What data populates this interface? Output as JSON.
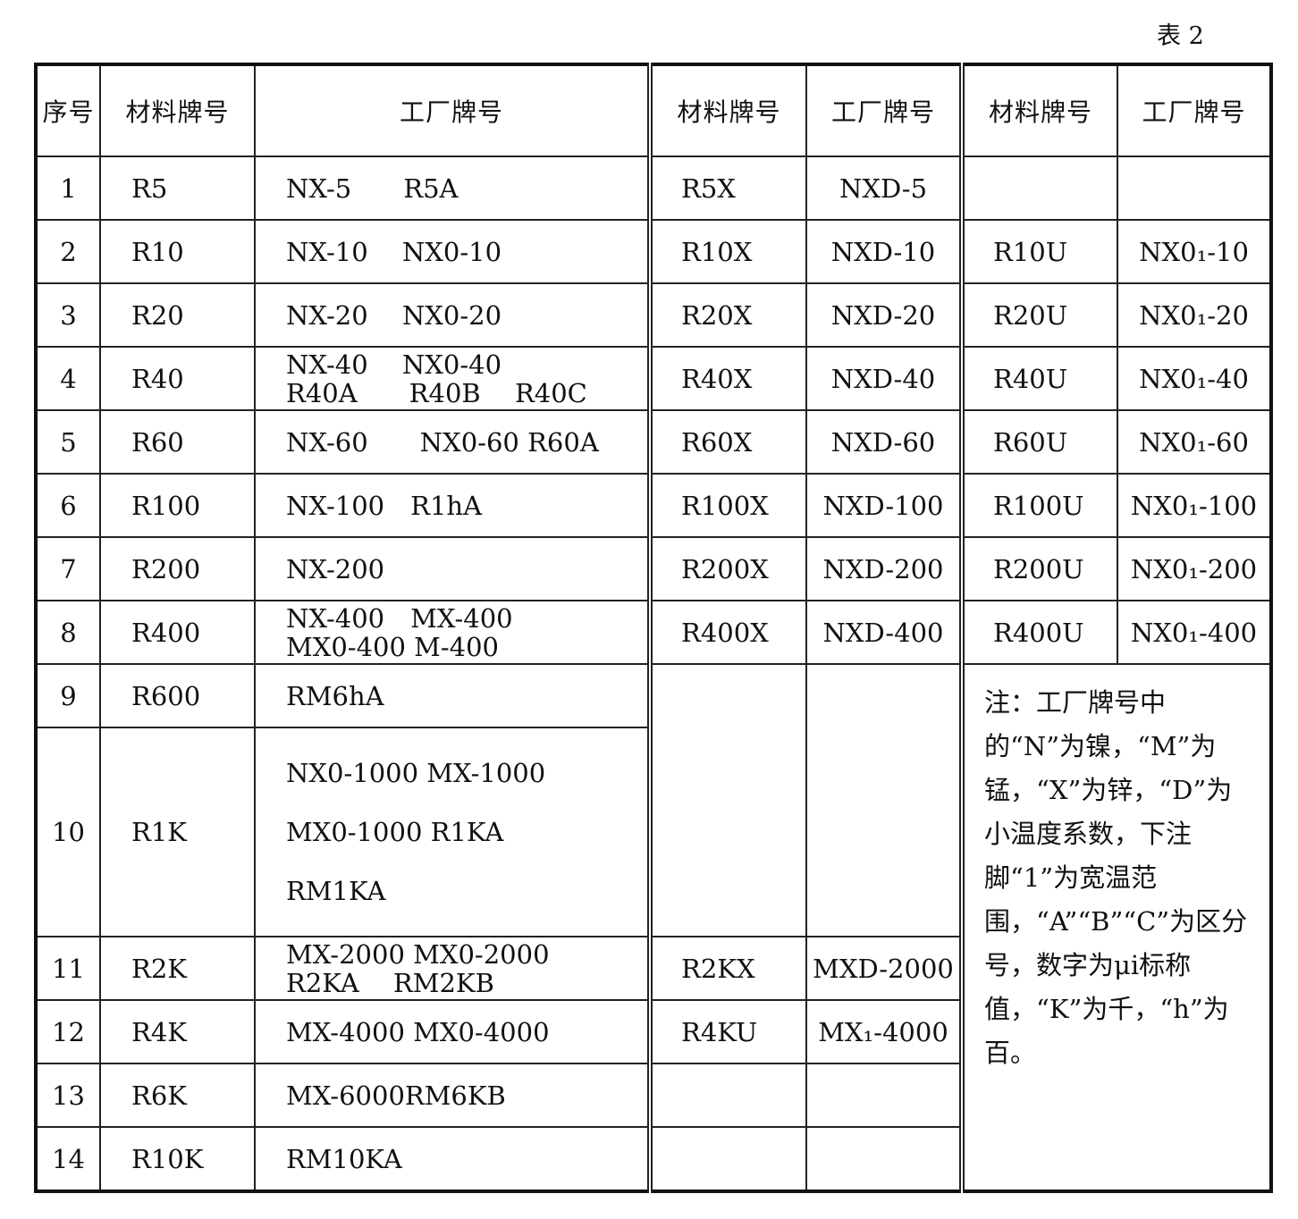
{
  "caption": "表 2",
  "headers": {
    "no": "序号",
    "material_1": "材料牌号",
    "factory_1": "工厂牌号",
    "material_2": "材料牌号",
    "factory_2": "工厂牌号",
    "material_3": "材料牌号",
    "factory_3": "工厂牌号"
  },
  "rows": [
    {
      "no": "1",
      "mat": "R5",
      "fac": [
        "NX-5　　R5A"
      ],
      "mat2": "R5X",
      "fac2": "NXD-5",
      "mat3": "",
      "fac3": ""
    },
    {
      "no": "2",
      "mat": "R10",
      "fac": [
        "NX-10　 NX0-10"
      ],
      "mat2": "R10X",
      "fac2": "NXD-10",
      "mat3": "R10U",
      "fac3": "NX0₁-10"
    },
    {
      "no": "3",
      "mat": "R20",
      "fac": [
        "NX-20　 NX0-20"
      ],
      "mat2": "R20X",
      "fac2": "NXD-20",
      "mat3": "R20U",
      "fac3": "NX0₁-20"
    },
    {
      "no": "4",
      "mat": "R40",
      "fac": [
        "NX-40　 NX0-40",
        "R40A　　R40B　 R40C"
      ],
      "mat2": "R40X",
      "fac2": "NXD-40",
      "mat3": "R40U",
      "fac3": "NX0₁-40"
    },
    {
      "no": "5",
      "mat": "R60",
      "fac": [
        "NX-60　　NX0-60 R60A"
      ],
      "mat2": "R60X",
      "fac2": "NXD-60",
      "mat3": "R60U",
      "fac3": "NX0₁-60"
    },
    {
      "no": "6",
      "mat": "R100",
      "fac": [
        "NX-100　R1hA"
      ],
      "mat2": "R100X",
      "fac2": "NXD-100",
      "mat3": "R100U",
      "fac3": "NX0₁-100"
    },
    {
      "no": "7",
      "mat": "R200",
      "fac": [
        "NX-200"
      ],
      "mat2": "R200X",
      "fac2": "NXD-200",
      "mat3": "R200U",
      "fac3": "NX0₁-200"
    },
    {
      "no": "8",
      "mat": "R400",
      "fac": [
        "NX-400　MX-400",
        "MX0-400 M-400"
      ],
      "mat2": "R400X",
      "fac2": "NXD-400",
      "mat3": "R400U",
      "fac3": "NX0₁-400"
    },
    {
      "no": "9",
      "mat": "R600",
      "fac": [
        "RM6hA"
      ]
    },
    {
      "no": "10",
      "mat": "R1K",
      "fac": [
        "NX0-1000 MX-1000",
        "MX0-1000 R1KA",
        "RM1KA"
      ]
    },
    {
      "no": "11",
      "mat": "R2K",
      "fac": [
        "MX-2000 MX0-2000",
        "R2KA　 RM2KB"
      ],
      "mat2": "R2KX",
      "fac2": "MXD-2000"
    },
    {
      "no": "12",
      "mat": "R4K",
      "fac": [
        "MX-4000 MX0-4000"
      ],
      "mat2": "R4KU",
      "fac2": "MX₁-4000"
    },
    {
      "no": "13",
      "mat": "R6K",
      "fac": [
        "MX-6000RM6KB"
      ],
      "mat2": "",
      "fac2": ""
    },
    {
      "no": "14",
      "mat": "R10K",
      "fac": [
        "RM10KA"
      ],
      "mat2": "",
      "fac2": ""
    }
  ],
  "note": "注：工厂牌号中的“N”为镍，“M”为锰，“X”为锌，“D”为小温度系数，下注脚“1”为宽温范围，“A”“B”“C”为区分号，数字为μi标称值，“K”为千，“h”为百。"
}
